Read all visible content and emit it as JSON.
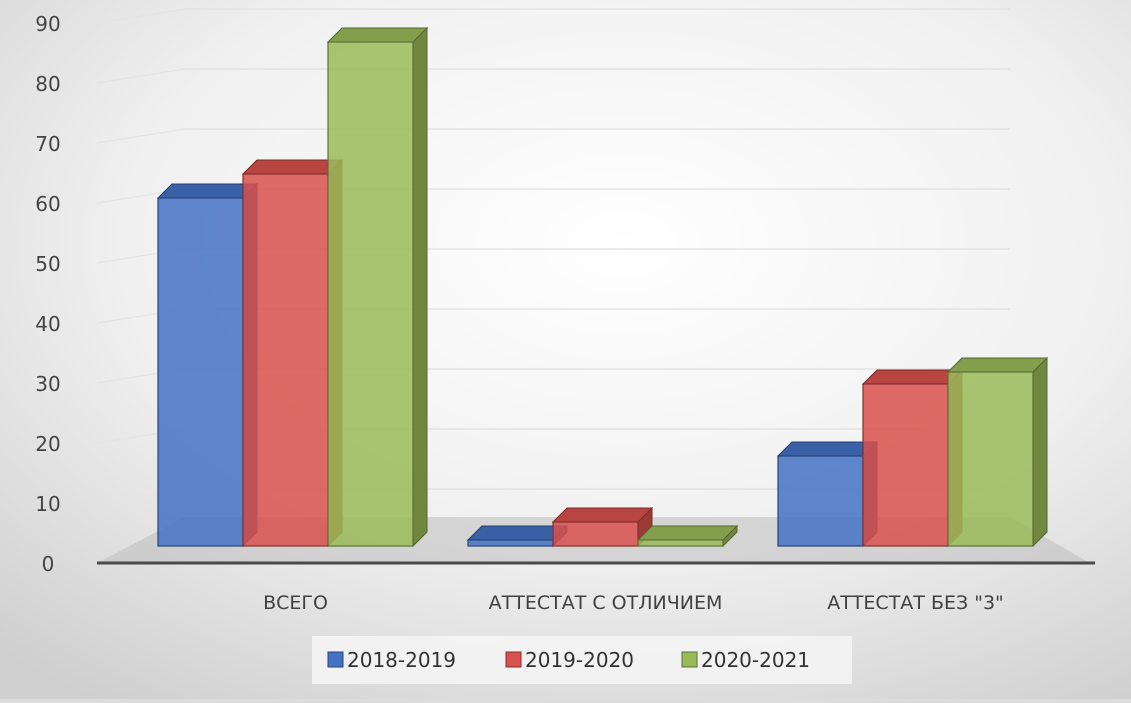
{
  "chart_data": {
    "type": "bar",
    "style": "3d-clustered-column",
    "categories": [
      "ВСЕГО",
      "АТТЕСТАТ С ОТЛИЧИЕМ",
      "АТТЕСТАТ БЕЗ \"3\""
    ],
    "series": [
      {
        "name": "2018-2019",
        "values": [
          58,
          1,
          15
        ],
        "color": "#4472C4"
      },
      {
        "name": "2019-2020",
        "values": [
          62,
          4,
          27
        ],
        "color": "#D9514E"
      },
      {
        "name": "2020-2021",
        "values": [
          84,
          1,
          29
        ],
        "color": "#9BBB59"
      }
    ],
    "yticks": [
      "0",
      "10",
      "20",
      "30",
      "40",
      "50",
      "60",
      "70",
      "80",
      "90"
    ],
    "ylim": [
      0,
      90
    ],
    "grid": true,
    "legend_position": "bottom",
    "title": "",
    "xlabel": "",
    "ylabel": ""
  }
}
